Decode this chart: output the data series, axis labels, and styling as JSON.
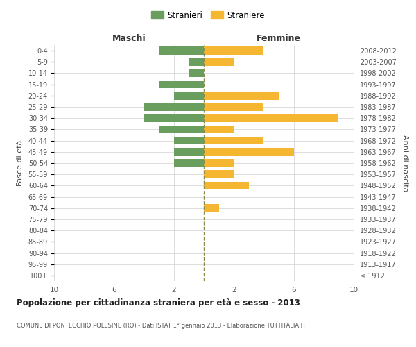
{
  "age_groups": [
    "100+",
    "95-99",
    "90-94",
    "85-89",
    "80-84",
    "75-79",
    "70-74",
    "65-69",
    "60-64",
    "55-59",
    "50-54",
    "45-49",
    "40-44",
    "35-39",
    "30-34",
    "25-29",
    "20-24",
    "15-19",
    "10-14",
    "5-9",
    "0-4"
  ],
  "birth_years": [
    "≤ 1912",
    "1913-1917",
    "1918-1922",
    "1923-1927",
    "1928-1932",
    "1933-1937",
    "1938-1942",
    "1943-1947",
    "1948-1952",
    "1953-1957",
    "1958-1962",
    "1963-1967",
    "1968-1972",
    "1973-1977",
    "1978-1982",
    "1983-1987",
    "1988-1992",
    "1993-1997",
    "1998-2002",
    "2003-2007",
    "2008-2012"
  ],
  "males": [
    0,
    0,
    0,
    0,
    0,
    0,
    0,
    0,
    0,
    0,
    2,
    2,
    2,
    3,
    4,
    4,
    2,
    3,
    1,
    1,
    3
  ],
  "females": [
    0,
    0,
    0,
    0,
    0,
    0,
    1,
    0,
    3,
    2,
    2,
    6,
    4,
    2,
    9,
    4,
    5,
    0,
    0,
    2,
    4
  ],
  "male_color": "#6a9e5e",
  "female_color": "#f5b731",
  "background_color": "#ffffff",
  "grid_color": "#d0d0d0",
  "title": "Popolazione per cittadinanza straniera per età e sesso - 2013",
  "subtitle": "COMUNE DI PONTECCHIO POLESINE (RO) - Dati ISTAT 1° gennaio 2013 - Elaborazione TUTTITALIA.IT",
  "ylabel_left": "Fasce di età",
  "ylabel_right": "Anni di nascita",
  "xlabel_left": "Maschi",
  "xlabel_right": "Femmine",
  "legend_male": "Stranieri",
  "legend_female": "Straniere",
  "dashed_line_color": "#8b8b4b"
}
